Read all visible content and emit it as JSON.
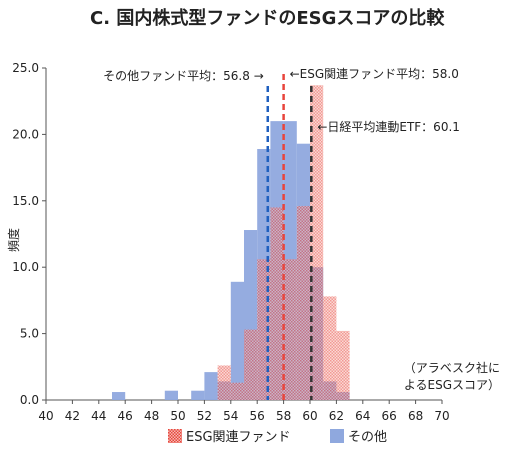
{
  "chart_data": {
    "type": "bar",
    "title": "C. 国内株式型ファンドのESGスコアの比較",
    "ylabel": "頻度",
    "xlabel": "",
    "xlim": [
      40,
      70
    ],
    "ylim": [
      0,
      25
    ],
    "x_ticks": [
      40,
      42,
      44,
      46,
      48,
      50,
      52,
      54,
      56,
      58,
      60,
      62,
      64,
      66,
      68,
      70
    ],
    "x_tick_labels": [
      "40",
      "42",
      "44",
      "46",
      "48",
      "50",
      "52",
      "54",
      "56",
      "58",
      "60",
      "62",
      "64",
      "66",
      "68",
      "70"
    ],
    "y_ticks": [
      0,
      5,
      10,
      15,
      20,
      25
    ],
    "y_tick_labels": [
      "0.0",
      "5.0",
      "10.0",
      "15.0",
      "20.0",
      "25.0"
    ],
    "bin_width": 1,
    "series": [
      {
        "name": "ESG関連ファンド",
        "color": "#e8453c",
        "pattern": "dotted",
        "bins": [
          53,
          54,
          55,
          56,
          57,
          58,
          59,
          60,
          61,
          62
        ],
        "values": [
          2.6,
          1.3,
          5.3,
          10.6,
          14.5,
          10.6,
          14.6,
          23.7,
          7.8,
          5.2
        ]
      },
      {
        "name": "その他",
        "color": "#8fa8de",
        "pattern": "solid",
        "bins": [
          45,
          49,
          51,
          52,
          53,
          54,
          55,
          56,
          57,
          58,
          59,
          60,
          61,
          62
        ],
        "values": [
          0.6,
          0.7,
          0.7,
          2.1,
          1.4,
          8.9,
          12.8,
          18.9,
          21.0,
          21.0,
          19.3,
          10.0,
          1.4,
          0.6
        ]
      }
    ],
    "reference_lines": [
      {
        "label": "その他ファンド平均：56.8 →",
        "x": 56.8,
        "color": "#1f5fbf"
      },
      {
        "label": "←ESG関連ファンド平均：58.0",
        "x": 58.0,
        "color": "#e8453c"
      },
      {
        "label": "←日経平均連動ETF：60.1",
        "x": 60.1,
        "color": "#333333"
      }
    ],
    "note": [
      "（アラベスク社に",
      "よるESGスコア）"
    ],
    "legend": {
      "placement": "bottom",
      "entries": [
        "ESG関連ファンド",
        "その他"
      ]
    },
    "grid": false
  }
}
